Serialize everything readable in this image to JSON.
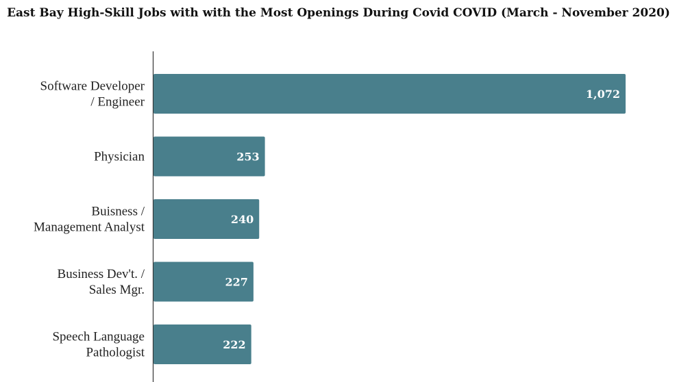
{
  "chart_data": {
    "type": "bar",
    "orientation": "horizontal",
    "title": "East Bay High-Skill Jobs with with the Most Openings During Covid COVID (March - November 2020)",
    "categories": [
      [
        "Software Developer",
        "/ Engineer"
      ],
      [
        "Physician"
      ],
      [
        "Buisness /",
        "Management Analyst"
      ],
      [
        "Business Dev't. /",
        "Sales Mgr."
      ],
      [
        "Speech Language",
        "Pathologist"
      ]
    ],
    "values": [
      1072,
      253,
      240,
      227,
      222
    ],
    "value_labels": [
      "1,072",
      "253",
      "240",
      "227",
      "222"
    ],
    "xlim": [
      0,
      1072
    ],
    "grid": false,
    "bar_color": "#497f8c"
  }
}
